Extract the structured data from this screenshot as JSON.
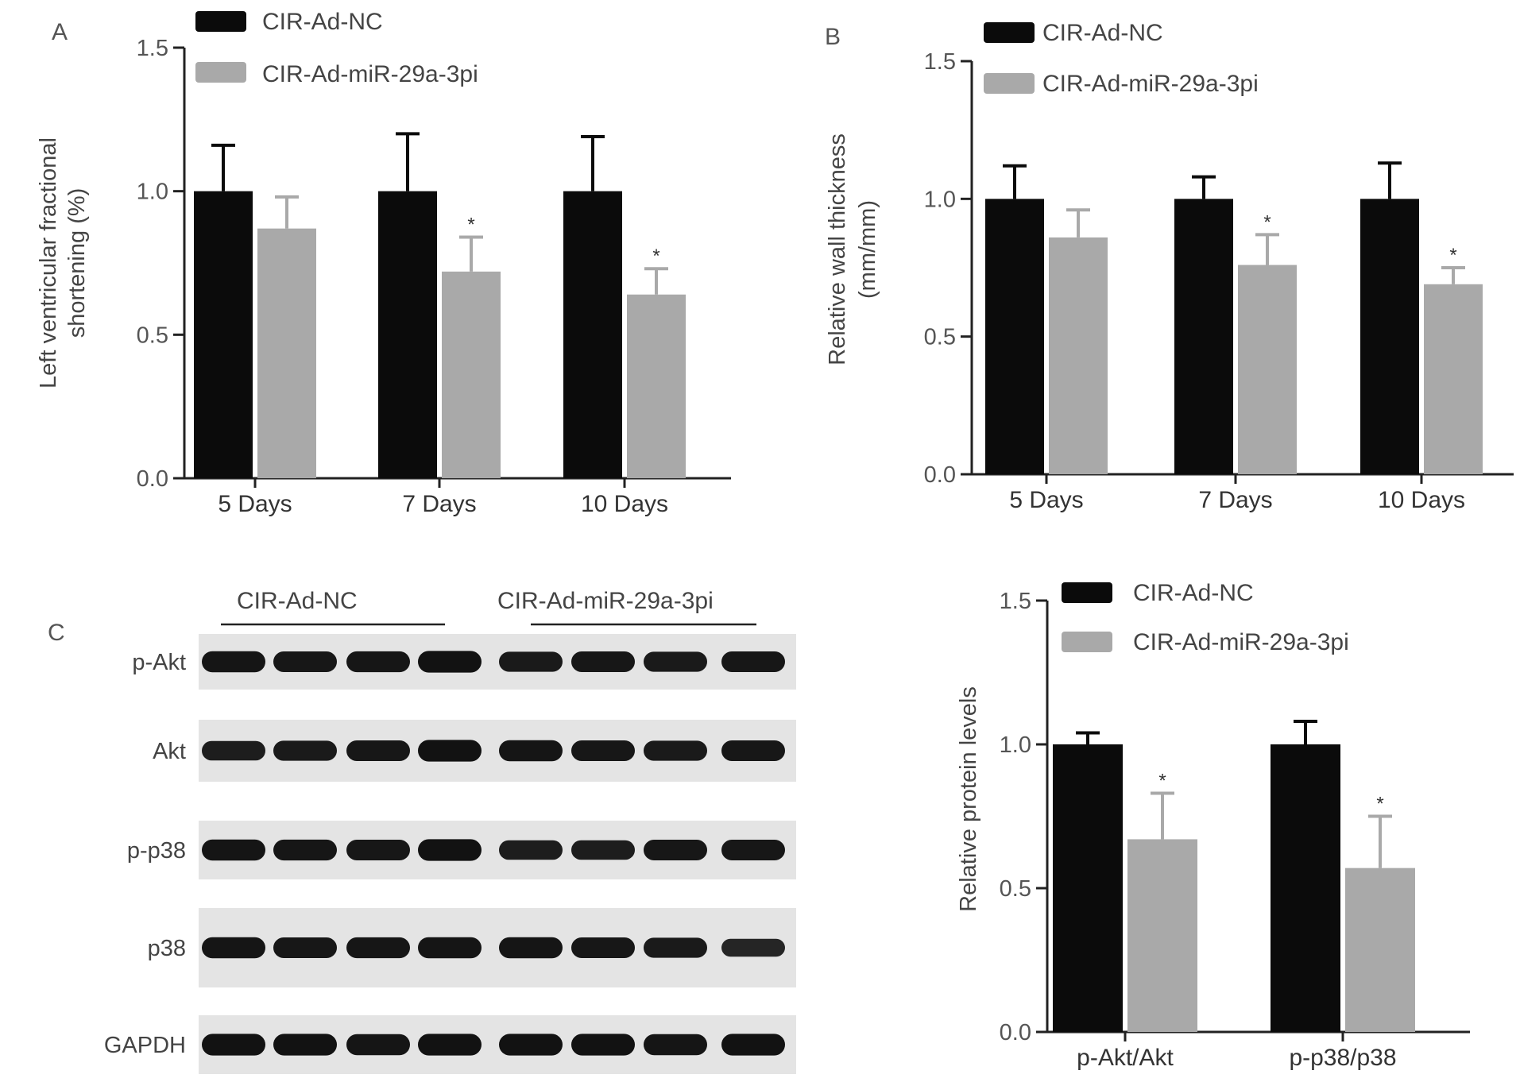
{
  "legend": {
    "nc": "CIR-Ad-NC",
    "mir": "CIR-Ad-miR-29a-3pi"
  },
  "colors": {
    "nc": "#0b0b0b",
    "mir": "#a9a9a9",
    "axis": "#222222"
  },
  "chart_data": [
    {
      "id": "A",
      "type": "bar",
      "categories": [
        "5 Days",
        "7 Days",
        "10 Days"
      ],
      "ylabel": [
        "Left ventricular fractional",
        "shortening (%)"
      ],
      "ylim": [
        0,
        1.5
      ],
      "ticks": [
        "0.0",
        "0.5",
        "1.0",
        "1.5"
      ],
      "tick_values": [
        0,
        0.5,
        1.0,
        1.5
      ],
      "series": [
        {
          "name": "CIR-Ad-NC",
          "values": [
            1.0,
            1.0,
            1.0
          ],
          "errors": [
            0.16,
            0.2,
            0.19
          ]
        },
        {
          "name": "CIR-Ad-miR-29a-3pi",
          "values": [
            0.87,
            0.72,
            0.64
          ],
          "errors": [
            0.11,
            0.12,
            0.09
          ],
          "significance": [
            "",
            "*",
            "*"
          ]
        }
      ]
    },
    {
      "id": "B",
      "type": "bar",
      "categories": [
        "5 Days",
        "7 Days",
        "10 Days"
      ],
      "ylabel": [
        "Relative wall thickness",
        "(mm/mm)"
      ],
      "ylim": [
        0,
        1.5
      ],
      "ticks": [
        "0.0",
        "0.5",
        "1.0",
        "1.5"
      ],
      "tick_values": [
        0,
        0.5,
        1.0,
        1.5
      ],
      "series": [
        {
          "name": "CIR-Ad-NC",
          "values": [
            1.0,
            1.0,
            1.0
          ],
          "errors": [
            0.12,
            0.08,
            0.13
          ]
        },
        {
          "name": "CIR-Ad-miR-29a-3pi",
          "values": [
            0.86,
            0.76,
            0.69
          ],
          "errors": [
            0.1,
            0.11,
            0.06
          ],
          "significance": [
            "",
            "*",
            "*"
          ]
        }
      ]
    },
    {
      "id": "C",
      "type": "bar",
      "categories": [
        "p-Akt/Akt",
        "p-p38/p38"
      ],
      "ylabel": [
        "Relative protein levels"
      ],
      "ylim": [
        0,
        1.5
      ],
      "ticks": [
        "0.0",
        "0.5",
        "1.0",
        "1.5"
      ],
      "tick_values": [
        0,
        0.5,
        1.0,
        1.5
      ],
      "series": [
        {
          "name": "CIR-Ad-NC",
          "values": [
            1.0,
            1.0
          ],
          "errors": [
            0.04,
            0.08
          ]
        },
        {
          "name": "CIR-Ad-miR-29a-3pi",
          "values": [
            0.67,
            0.57
          ],
          "errors": [
            0.16,
            0.18
          ],
          "significance": [
            "*",
            "*"
          ]
        }
      ]
    }
  ],
  "blot": {
    "panel_letter": "C",
    "group_labels": [
      "CIR-Ad-NC",
      "CIR-Ad-miR-29a-3pi"
    ],
    "rows": [
      {
        "label": "p-Akt",
        "intensity": [
          0.9,
          0.85,
          0.88,
          0.95,
          0.8,
          0.85,
          0.8,
          0.85
        ]
      },
      {
        "label": "Akt",
        "intensity": [
          0.75,
          0.8,
          0.85,
          0.95,
          0.9,
          0.85,
          0.8,
          0.85
        ]
      },
      {
        "label": "p-p38",
        "intensity": [
          0.9,
          0.88,
          0.85,
          0.95,
          0.75,
          0.75,
          0.85,
          0.85
        ]
      },
      {
        "label": "p38",
        "intensity": [
          0.9,
          0.85,
          0.88,
          0.9,
          0.9,
          0.85,
          0.8,
          0.6
        ]
      },
      {
        "label": "GAPDH",
        "intensity": [
          0.95,
          0.95,
          0.9,
          0.95,
          0.95,
          0.95,
          0.9,
          0.95
        ]
      }
    ]
  }
}
